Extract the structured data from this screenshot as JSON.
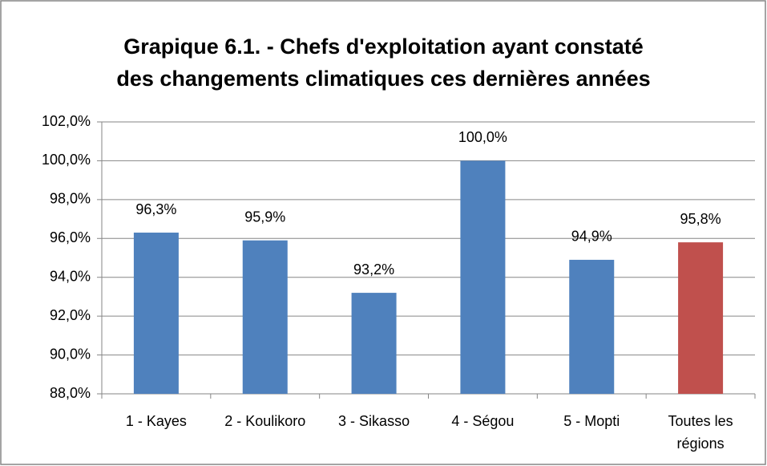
{
  "chart_data": {
    "type": "bar",
    "title": "Grapique 6.1. - Chefs d'exploitation ayant constaté\ndes changements climatiques ces dernières années",
    "categories": [
      "1 - Kayes",
      "2 - Koulikoro",
      "3 - Sikasso",
      "4 - Ségou",
      "5 - Mopti",
      "Toutes les régions"
    ],
    "values": [
      96.3,
      95.9,
      93.2,
      100.0,
      94.9,
      95.8
    ],
    "value_labels": [
      "96,3%",
      "95,9%",
      "93,2%",
      "100,0%",
      "94,9%",
      "95,8%"
    ],
    "colors": [
      "#4f81bd",
      "#4f81bd",
      "#4f81bd",
      "#4f81bd",
      "#4f81bd",
      "#c0504d"
    ],
    "ylim": [
      88,
      102
    ],
    "yticks": [
      {
        "value": 88,
        "label": "88,0%"
      },
      {
        "value": 90,
        "label": "90,0%"
      },
      {
        "value": 92,
        "label": "92,0%"
      },
      {
        "value": 94,
        "label": "94,0%"
      },
      {
        "value": 96,
        "label": "96,0%"
      },
      {
        "value": 98,
        "label": "98,0%"
      },
      {
        "value": 100,
        "label": "100,0%"
      },
      {
        "value": 102,
        "label": "102,0%"
      }
    ],
    "grid": true
  }
}
